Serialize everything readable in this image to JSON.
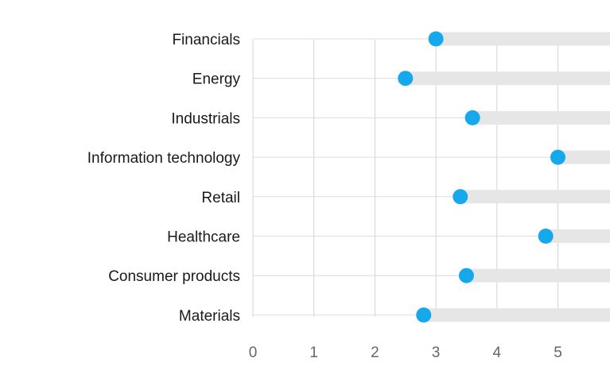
{
  "chart_data": {
    "type": "scatter",
    "title": "",
    "xlabel": "",
    "ylabel": "",
    "xlim": [
      0,
      6
    ],
    "x_ticks": [
      "0",
      "1",
      "2",
      "3",
      "4",
      "5"
    ],
    "grid": "vertical",
    "categories": [
      "Financials",
      "Energy",
      "Industrials",
      "Information technology",
      "Retail",
      "Healthcare",
      "Consumer products",
      "Materials"
    ],
    "values": [
      3.0,
      2.5,
      3.6,
      5.0,
      3.4,
      4.8,
      3.5,
      2.8
    ]
  },
  "colors": {
    "dot": "#16a8ec",
    "track": "#e6e6e6",
    "grid": "#d4d4d4",
    "label": "#1a1a1a",
    "tick": "#666666"
  }
}
